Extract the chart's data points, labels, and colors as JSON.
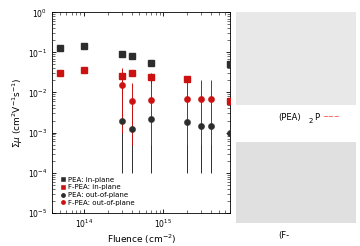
{
  "xlabel": "Fluence (cm$^{-2}$)",
  "ylabel": "$\\Sigma\\mu$ (cm$^2$V$^{-1}$s$^{-1}$)",
  "xlim_lo": 40000000000000.0,
  "xlim_hi": 7000000000000000.0,
  "ylim_lo": 1e-05,
  "ylim_hi": 1.0,
  "pea_inplane_x": [
    50000000000000.0,
    100000000000000.0,
    300000000000000.0,
    400000000000000.0,
    700000000000000.0,
    7000000000000000.0
  ],
  "pea_inplane_y": [
    0.13,
    0.145,
    0.09,
    0.08,
    0.055,
    0.05
  ],
  "fpea_inplane_x": [
    50000000000000.0,
    100000000000000.0,
    300000000000000.0,
    400000000000000.0,
    700000000000000.0,
    2000000000000000.0,
    7000000000000000.0
  ],
  "fpea_inplane_y": [
    0.03,
    0.036,
    0.026,
    0.03,
    0.024,
    0.022,
    0.006
  ],
  "pea_oop_x": [
    300000000000000.0,
    400000000000000.0,
    700000000000000.0,
    2000000000000000.0,
    3000000000000000.0,
    4000000000000000.0,
    7000000000000000.0
  ],
  "pea_oop_y": [
    0.002,
    0.0012,
    0.0022,
    0.0018,
    0.0015,
    0.0015,
    0.001
  ],
  "pea_oop_el": [
    0.0019,
    0.0011,
    0.0021,
    0.0017,
    0.0014,
    0.0014,
    0.0009
  ],
  "pea_oop_eh": [
    0.018,
    0.0035,
    0.028,
    0.015,
    0.008,
    0.008,
    0.005
  ],
  "fpea_oop_x": [
    300000000000000.0,
    400000000000000.0,
    700000000000000.0,
    2000000000000000.0,
    3000000000000000.0,
    4000000000000000.0,
    7000000000000000.0
  ],
  "fpea_oop_y": [
    0.015,
    0.006,
    0.0065,
    0.007,
    0.007,
    0.007,
    0.006
  ],
  "fpea_oop_el": [
    0.014,
    0.0055,
    0.006,
    0.0065,
    0.0065,
    0.0065,
    0.0055
  ],
  "fpea_oop_eh": [
    0.025,
    0.011,
    0.011,
    0.014,
    0.013,
    0.013,
    0.011
  ],
  "black": "#2d2d2d",
  "red": "#cc1111",
  "plot_bg": "#ffffff",
  "legend_labels": [
    "PEA: in-plane",
    "F-PEA: in-plane",
    "PEA: out-of-plane",
    "F-PEA: out-of-plane"
  ],
  "top_label": "(PEA)",
  "top_sub": "2",
  "top_rest": "P",
  "bot_label": "(F-",
  "right_bg": "#f0f0f0"
}
